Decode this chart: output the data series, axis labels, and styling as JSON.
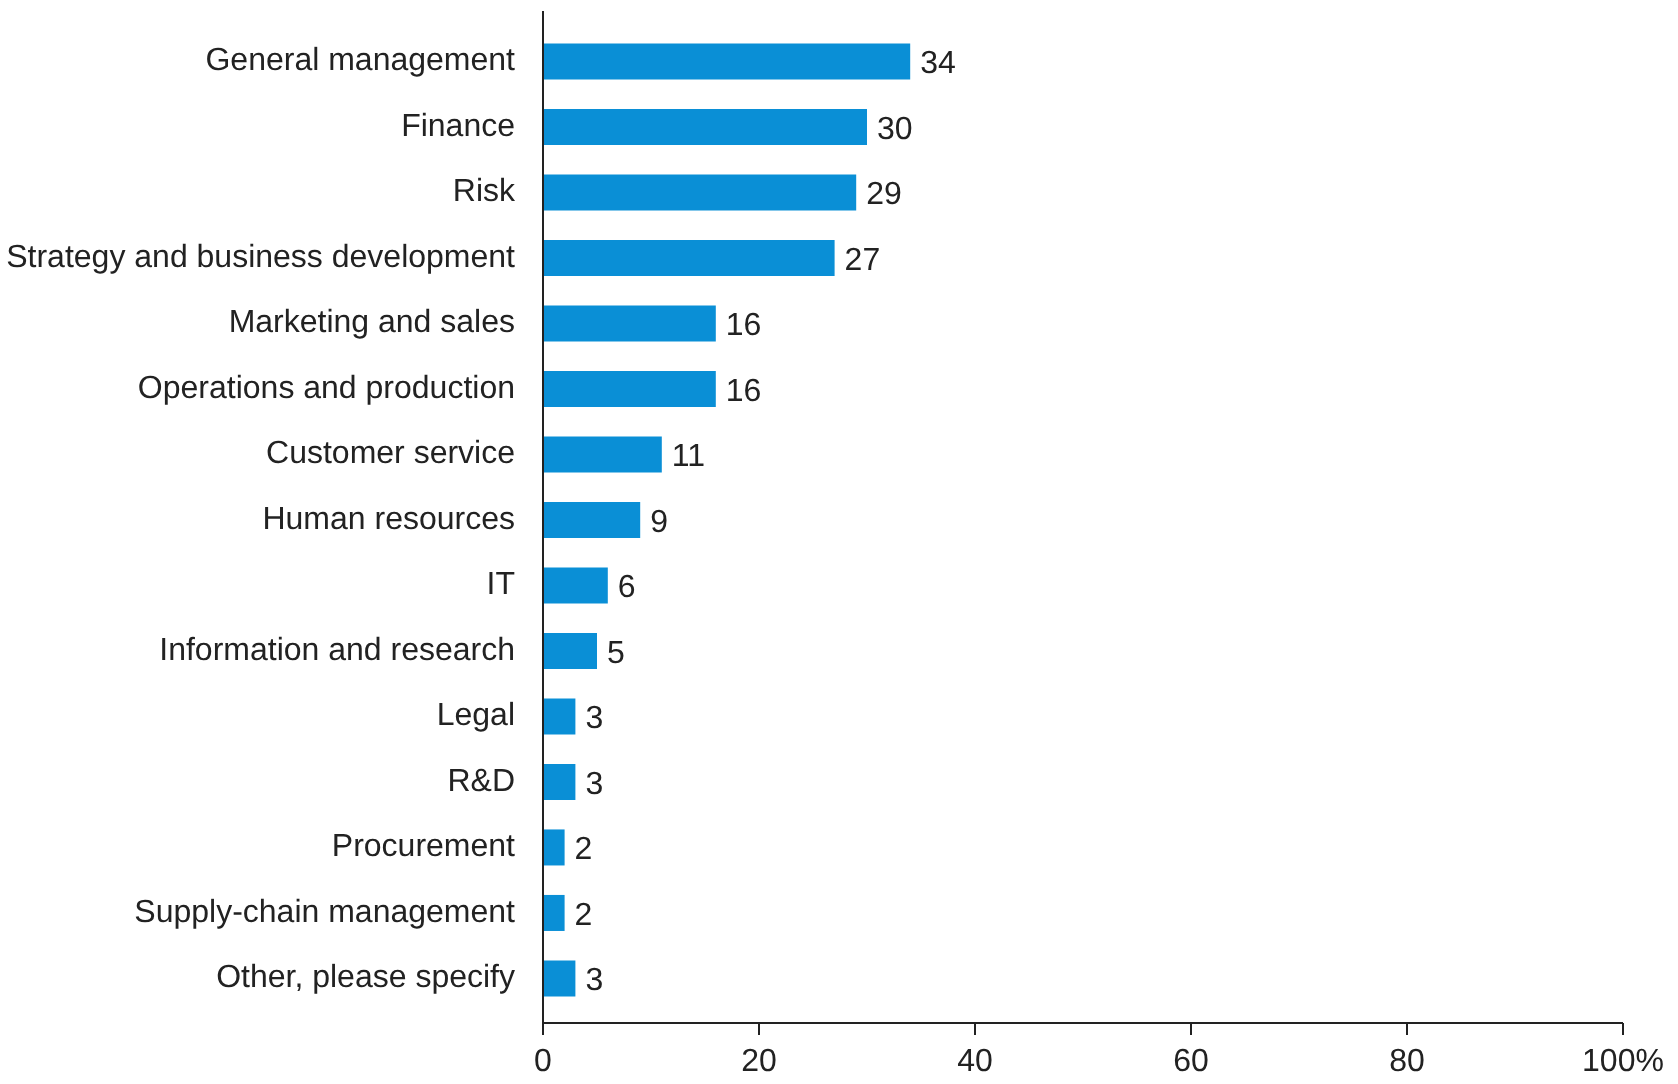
{
  "chart_data": {
    "type": "bar",
    "orientation": "horizontal",
    "categories": [
      "General management",
      "Finance",
      "Risk",
      "Strategy and business development",
      "Marketing and sales",
      "Operations and production",
      "Customer service",
      "Human resources",
      "IT",
      "Information and research",
      "Legal",
      "R&D",
      "Procurement",
      "Supply-chain management",
      "Other, please specify"
    ],
    "values": [
      34,
      30,
      29,
      27,
      16,
      16,
      11,
      9,
      6,
      5,
      3,
      3,
      2,
      2,
      3
    ],
    "color": "#0a8fd6",
    "xlim": [
      0,
      100
    ],
    "xticks": [
      0,
      20,
      40,
      60,
      80,
      {
        "value": 100,
        "label": "100%"
      }
    ],
    "data_labels": true,
    "grid": false
  }
}
